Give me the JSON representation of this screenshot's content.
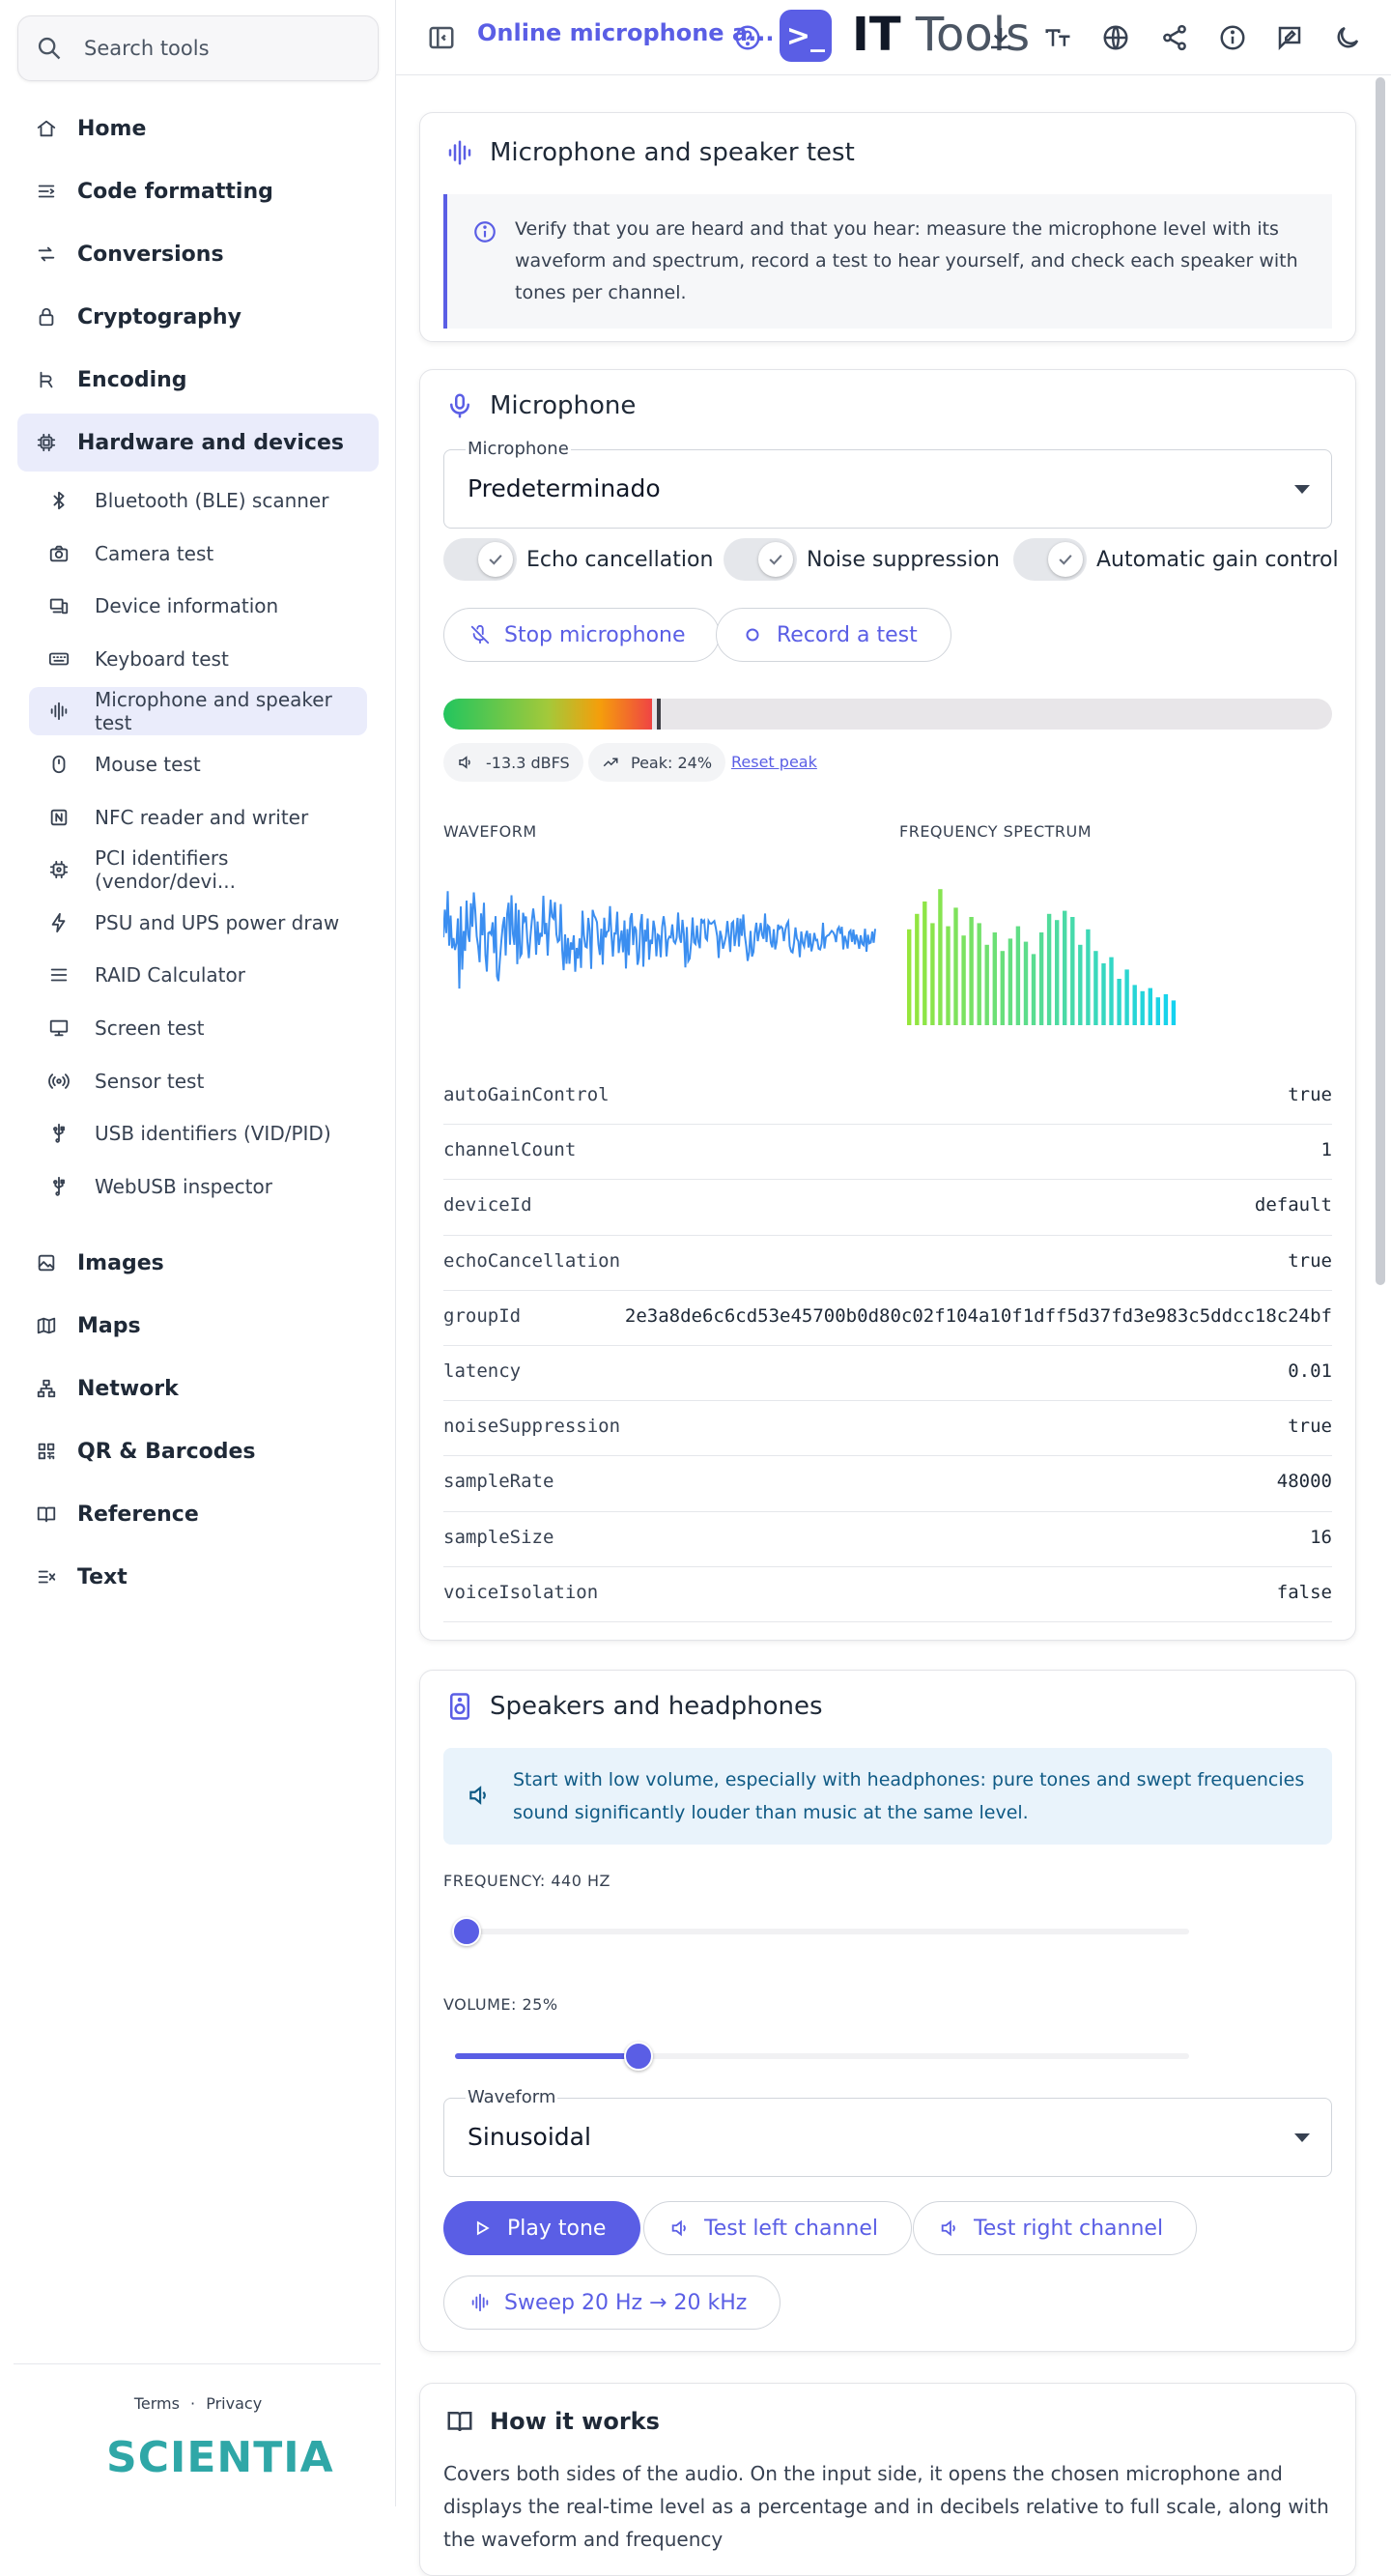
{
  "search": {
    "placeholder": "Search tools"
  },
  "sidebar": {
    "categories_top": [
      {
        "label": "Home",
        "icon": "home-icon"
      },
      {
        "label": "Code formatting",
        "icon": "code-icon"
      },
      {
        "label": "Conversions",
        "icon": "convert-icon"
      },
      {
        "label": "Cryptography",
        "icon": "lock-icon"
      },
      {
        "label": "Encoding",
        "icon": "encoding-icon"
      },
      {
        "label": "Hardware and devices",
        "icon": "cpu-icon"
      }
    ],
    "hardware_items": [
      {
        "label": "Bluetooth (BLE) scanner",
        "icon": "bluetooth-icon"
      },
      {
        "label": "Camera test",
        "icon": "camera-icon"
      },
      {
        "label": "Device information",
        "icon": "devices-icon"
      },
      {
        "label": "Keyboard test",
        "icon": "keyboard-icon"
      },
      {
        "label": "Microphone and speaker test",
        "icon": "waveform-icon"
      },
      {
        "label": "Mouse test",
        "icon": "mouse-icon"
      },
      {
        "label": "NFC reader and writer",
        "icon": "nfc-icon"
      },
      {
        "label": "PCI identifiers (vendor/devi...",
        "icon": "chip-icon"
      },
      {
        "label": "PSU and UPS power draw",
        "icon": "bolt-icon"
      },
      {
        "label": "RAID Calculator",
        "icon": "stack-icon"
      },
      {
        "label": "Screen test",
        "icon": "monitor-icon"
      },
      {
        "label": "Sensor test",
        "icon": "sensor-icon"
      },
      {
        "label": "USB identifiers (VID/PID)",
        "icon": "usb-icon"
      },
      {
        "label": "WebUSB inspector",
        "icon": "usb-icon"
      }
    ],
    "categories_bottom": [
      {
        "label": "Images",
        "icon": "image-icon"
      },
      {
        "label": "Maps",
        "icon": "map-icon"
      },
      {
        "label": "Network",
        "icon": "network-icon"
      },
      {
        "label": "QR & Barcodes",
        "icon": "qr-icon"
      },
      {
        "label": "Reference",
        "icon": "book-icon"
      },
      {
        "label": "Text",
        "icon": "text-icon"
      }
    ],
    "footer": {
      "terms": "Terms",
      "sep": "·",
      "privacy": "Privacy",
      "logo": "SCIENTIA"
    }
  },
  "topbar": {
    "breadcrumb": "Online microphone a...",
    "brand_symbol": ">_",
    "brand_bold": "IT",
    "brand_light": " Tools"
  },
  "intro": {
    "title": "Microphone and speaker test",
    "info": "Verify that you are heard and that you hear: measure the microphone level with its waveform and spectrum, record a test to hear yourself, and check each speaker with tones per channel."
  },
  "microphone": {
    "title": "Microphone",
    "select_label": "Microphone",
    "select_value": "Predeterminado",
    "toggles": [
      {
        "label": "Echo cancellation",
        "on": true
      },
      {
        "label": "Noise suppression",
        "on": true
      },
      {
        "label": "Automatic gain control",
        "on": true
      }
    ],
    "stop_label": "Stop microphone",
    "record_label": "Record a test",
    "level_fraction": 0.235,
    "peak_fraction": 0.24,
    "dbfs": "-13.3 dBFS",
    "peak": "Peak: 24%",
    "reset_peak": "Reset peak",
    "waveform_label": "WAVEFORM",
    "spectrum_label": "FREQUENCY SPECTRUM",
    "waveform_color": "#3b8ef0",
    "spectrum_bars": [
      0.62,
      0.72,
      0.8,
      0.66,
      0.88,
      0.64,
      0.76,
      0.58,
      0.7,
      0.66,
      0.52,
      0.6,
      0.48,
      0.56,
      0.64,
      0.54,
      0.46,
      0.6,
      0.72,
      0.68,
      0.74,
      0.7,
      0.52,
      0.62,
      0.48,
      0.4,
      0.44,
      0.3,
      0.36,
      0.26,
      0.22,
      0.24,
      0.18,
      0.2,
      0.16
    ],
    "constraints": [
      {
        "key": "autoGainControl",
        "value": "true"
      },
      {
        "key": "channelCount",
        "value": "1"
      },
      {
        "key": "deviceId",
        "value": "default"
      },
      {
        "key": "echoCancellation",
        "value": "true"
      },
      {
        "key": "groupId",
        "value": "2e3a8de6c6cd53e45700b0d80c02f104a10f1dff5d37fd3e983c5ddcc18c24bf"
      },
      {
        "key": "latency",
        "value": "0.01"
      },
      {
        "key": "noiseSuppression",
        "value": "true"
      },
      {
        "key": "sampleRate",
        "value": "48000"
      },
      {
        "key": "sampleSize",
        "value": "16"
      },
      {
        "key": "voiceIsolation",
        "value": "false"
      }
    ]
  },
  "speakers": {
    "title": "Speakers and headphones",
    "warning": "Start with low volume, especially with headphones: pure tones and swept frequencies sound significantly louder than music at the same level.",
    "frequency_label": "FREQUENCY: 440 HZ",
    "frequency_fraction": 0.016,
    "volume_label": "VOLUME: 25%",
    "volume_fraction": 0.25,
    "waveform_select_label": "Waveform",
    "waveform_select_value": "Sinusoidal",
    "play_label": "Play tone",
    "left_label": "Test left channel",
    "right_label": "Test right channel",
    "sweep_label": "Sweep 20 Hz → 20 kHz"
  },
  "how": {
    "title": "How it works",
    "text": "Covers both sides of the audio. On the input side, it opens the chosen microphone and displays the real-time level as a percentage and in decibels relative to full scale, along with the waveform and frequency"
  },
  "colors": {
    "accent": "#5a5ee5",
    "active_bg": "#eaecfb"
  }
}
